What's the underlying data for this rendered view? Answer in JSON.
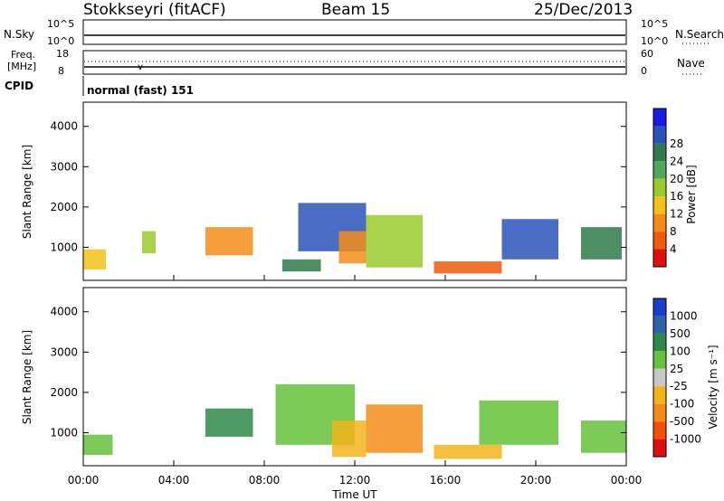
{
  "header": {
    "station": "Stokkseyri (fitACF)",
    "beam": "Beam 15",
    "date": "25/Dec/2013"
  },
  "noise_panel": {
    "left_label": "N.Sky",
    "right_label": "N.Search",
    "left_top_tick": "10^5",
    "left_bottom_tick": "10^0",
    "right_top_tick": "10^5",
    "right_bottom_tick": "10^0"
  },
  "freq_panel": {
    "left_label_1": "Freq.",
    "left_label_2": "[MHz]",
    "right_label": "Nave",
    "left_top_tick": "18",
    "left_bottom_tick": "8",
    "right_top_tick": "60",
    "right_bottom_tick": "0"
  },
  "cpid": {
    "label": "CPID",
    "value": "normal (fast) 151"
  },
  "chart_data": [
    {
      "type": "heatmap",
      "name": "power",
      "ylabel": "Slant Range [km]",
      "yticks": [
        "1000",
        "2000",
        "3000",
        "4000"
      ],
      "ylim": [
        180,
        4600
      ],
      "colorbar_label": "Power [dB]",
      "colorbar_ticks": [
        "4",
        "8",
        "12",
        "16",
        "20",
        "24",
        "28"
      ],
      "colors": [
        "#1a1ae6",
        "#2b52b8",
        "#2f7a4a",
        "#4fa85a",
        "#9acb2e",
        "#f2c21a",
        "#f58c1a",
        "#f05a0a",
        "#e01010"
      ],
      "regions": [
        {
          "t": [
            0.0,
            1.0
          ],
          "r": [
            450,
            950
          ],
          "level": 6
        },
        {
          "t": [
            2.6,
            3.2
          ],
          "r": [
            850,
            1400
          ],
          "level": 5
        },
        {
          "t": [
            5.4,
            7.5
          ],
          "r": [
            800,
            1500
          ],
          "level": 7
        },
        {
          "t": [
            8.8,
            10.5
          ],
          "r": [
            400,
            700
          ],
          "level": 3
        },
        {
          "t": [
            9.5,
            12.5
          ],
          "r": [
            900,
            2100
          ],
          "level": 2
        },
        {
          "t": [
            11.3,
            12.5
          ],
          "r": [
            600,
            1400
          ],
          "level": 7
        },
        {
          "t": [
            12.5,
            15.0
          ],
          "r": [
            500,
            1800
          ],
          "level": 5
        },
        {
          "t": [
            15.5,
            18.5
          ],
          "r": [
            350,
            650
          ],
          "level": 8
        },
        {
          "t": [
            18.5,
            21.0
          ],
          "r": [
            700,
            1700
          ],
          "level": 2
        },
        {
          "t": [
            22.0,
            23.8
          ],
          "r": [
            700,
            1500
          ],
          "level": 3
        }
      ]
    },
    {
      "type": "heatmap",
      "name": "velocity",
      "ylabel": "Slant Range [km]",
      "yticks": [
        "1000",
        "2000",
        "3000",
        "4000"
      ],
      "ylim": [
        180,
        4600
      ],
      "colorbar_label": "Velocity [m s⁻¹]",
      "colorbar_ticks": [
        "1000",
        "500",
        "100",
        "25",
        "-25",
        "-100",
        "-500",
        "-1000"
      ],
      "colors": [
        "#1a3ec8",
        "#2b62a8",
        "#2f8a4a",
        "#66c23a",
        "#c8c8c8",
        "#f2b41a",
        "#f58c1a",
        "#f0500a",
        "#e01010"
      ],
      "regions": [
        {
          "t": [
            0.0,
            1.3
          ],
          "r": [
            450,
            950
          ],
          "level": 4
        },
        {
          "t": [
            5.4,
            7.5
          ],
          "r": [
            900,
            1600
          ],
          "level": 3
        },
        {
          "t": [
            8.5,
            12.0
          ],
          "r": [
            700,
            2200
          ],
          "level": 4
        },
        {
          "t": [
            11.0,
            12.5
          ],
          "r": [
            400,
            1300
          ],
          "level": 6
        },
        {
          "t": [
            12.5,
            15.0
          ],
          "r": [
            500,
            1700
          ],
          "level": 7
        },
        {
          "t": [
            15.5,
            18.5
          ],
          "r": [
            350,
            700
          ],
          "level": 6
        },
        {
          "t": [
            17.5,
            21.0
          ],
          "r": [
            700,
            1800
          ],
          "level": 4
        },
        {
          "t": [
            22.0,
            24.0
          ],
          "r": [
            500,
            1300
          ],
          "level": 4
        }
      ]
    }
  ],
  "xaxis": {
    "label": "Time UT",
    "ticks": [
      "00:00",
      "04:00",
      "08:00",
      "12:00",
      "16:00",
      "20:00",
      "00:00"
    ]
  }
}
